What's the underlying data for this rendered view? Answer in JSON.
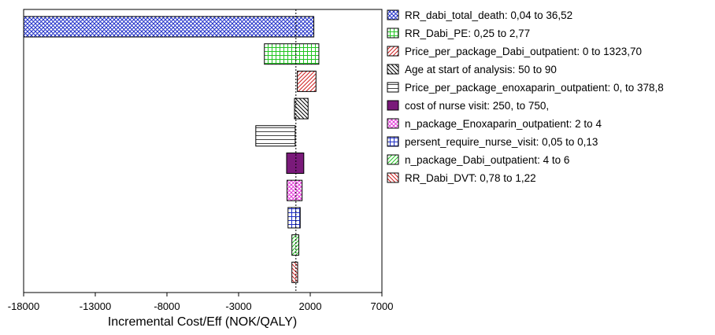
{
  "chart_data": {
    "type": "bar",
    "subtype": "tornado",
    "title": "",
    "xlabel": "Incremental Cost/Eff (NOK/QALY)",
    "ylabel": "",
    "xlim": [
      -18000,
      7000
    ],
    "xticks": [
      -18000,
      -13000,
      -8000,
      -3000,
      2000,
      7000
    ],
    "xtick_labels": [
      "-18000",
      "-13000",
      "-8000",
      "-3000",
      "2000",
      "7000"
    ],
    "base_value": 1000,
    "grid": false,
    "legend_position": "right",
    "series": [
      {
        "name": "RR_dabi_total_death: 0,04 to 36,52",
        "range": [
          -18000,
          2250
        ],
        "pattern": "crosshatch",
        "color": "#1f2fc8"
      },
      {
        "name": "RR_Dabi_PE: 0,25 to 2,77",
        "range": [
          -1200,
          2600
        ],
        "pattern": "grid",
        "color": "#22c522"
      },
      {
        "name": "Price_per_package_Dabi_outpatient: 0 to 1323,70",
        "range": [
          1100,
          2400
        ],
        "pattern": "diag-fwd",
        "color": "#d02020"
      },
      {
        "name": "Age at start of analysis: 50 to 90",
        "range": [
          900,
          1850
        ],
        "pattern": "diag-back",
        "color": "#000000"
      },
      {
        "name": "Price_per_package_enoxaparin_outpatient: 0, to 378,8",
        "range": [
          -1800,
          950
        ],
        "pattern": "horizontal",
        "color": "#444444"
      },
      {
        "name": "cost of nurse visit: 250, to 750,",
        "range": [
          350,
          1550
        ],
        "pattern": "solid",
        "color": "#7a1a7a"
      },
      {
        "name": "n_package_Enoxaparin_outpatient: 2 to 4",
        "range": [
          380,
          1430
        ],
        "pattern": "crosshatch",
        "color": "#e23ad8"
      },
      {
        "name": "persent_require_nurse_visit: 0,05 to 0,13",
        "range": [
          450,
          1300
        ],
        "pattern": "grid",
        "color": "#1f2fc8"
      },
      {
        "name": "n_package_Dabi_outpatient: 4 to 6",
        "range": [
          720,
          1200
        ],
        "pattern": "diag-fwd",
        "color": "#22c522"
      },
      {
        "name": "RR_Dabi_DVT: 0,78 to 1,22",
        "range": [
          720,
          1120
        ],
        "pattern": "diag-back",
        "color": "#d02020"
      }
    ]
  }
}
